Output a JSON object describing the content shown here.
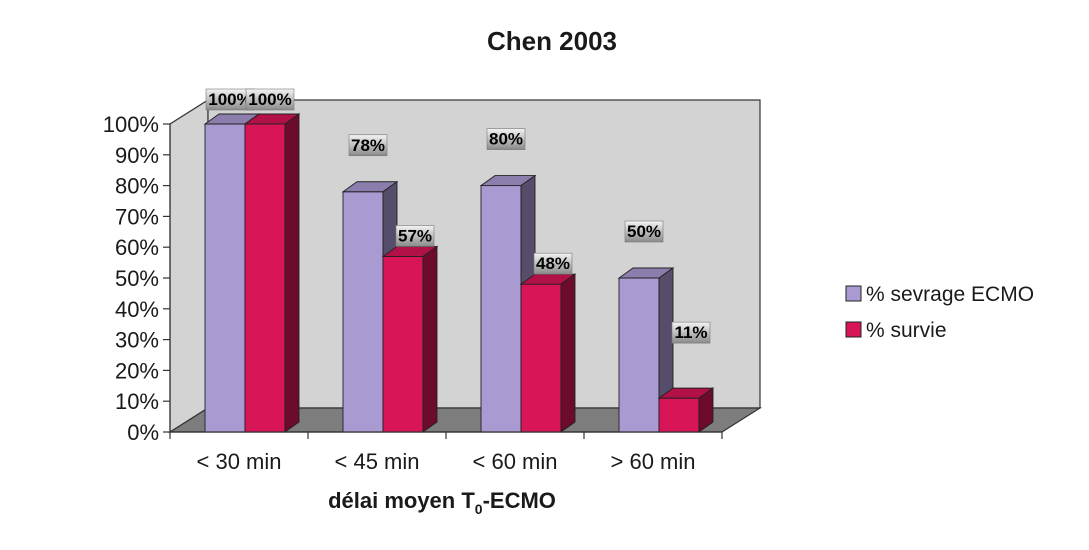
{
  "chart_data": {
    "type": "bar",
    "title": "Chen 2003",
    "xlabel_main": "délai moyen T",
    "xlabel_sub": "0",
    "xlabel_tail": "-ECMO",
    "ylabel": "",
    "ylim": [
      0,
      100
    ],
    "y_tick_values": [
      0,
      10,
      20,
      30,
      40,
      50,
      60,
      70,
      80,
      90,
      100
    ],
    "y_tick_suffix": "%",
    "grid": false,
    "legend_position": "right",
    "categories": [
      "< 30 min",
      "< 45 min",
      "< 60 min",
      "> 60 min"
    ],
    "series": [
      {
        "name": "% sevrage ECMO",
        "values": [
          100,
          78,
          80,
          50
        ],
        "labels": [
          "100%",
          "78%",
          "80%",
          "50%"
        ],
        "color": "#a99ad2"
      },
      {
        "name": "% survie",
        "values": [
          100,
          57,
          48,
          11
        ],
        "labels": [
          "100%",
          "57%",
          "48%",
          "11%"
        ],
        "color": "#d81556"
      }
    ]
  },
  "colors": {
    "plot_wall": "#d3d3d3",
    "plot_floor": "#7d7d7d",
    "label_box_top": "#f0f0f0",
    "label_box_bottom": "#8c8c8c"
  }
}
